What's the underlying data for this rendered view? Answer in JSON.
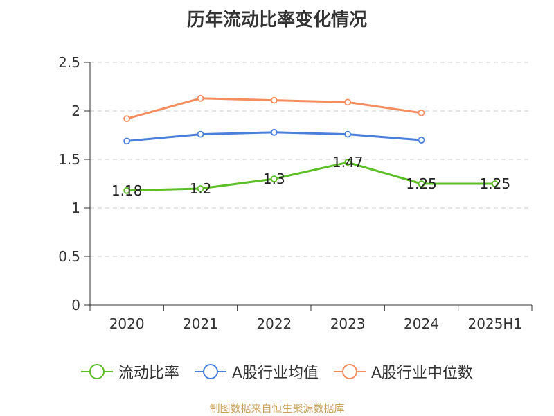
{
  "title": "历年流动比率变化情况",
  "source": "制图数据来自恒生聚源数据库",
  "colors": {
    "current_ratio": "#5cbf26",
    "industry_mean": "#4a7fdc",
    "industry_median": "#f68d5f",
    "grid": "#cccccc",
    "axis": "#333333"
  },
  "chart_data": {
    "type": "line",
    "categories": [
      "2020",
      "2021",
      "2022",
      "2023",
      "2024",
      "2025H1"
    ],
    "ylim": [
      0,
      2.5
    ],
    "yticks": [
      "0",
      "0.5",
      "1",
      "1.5",
      "2",
      "2.5"
    ],
    "grid": true,
    "legend_position": "bottom",
    "series": [
      {
        "name": "流动比率",
        "values": [
          1.18,
          1.2,
          1.3,
          1.47,
          1.25,
          1.25
        ],
        "labels": [
          "1.18",
          "1.2",
          "1.3",
          "1.47",
          "1.25",
          "1.25"
        ]
      },
      {
        "name": "A股行业均值",
        "values": [
          1.69,
          1.76,
          1.78,
          1.76,
          1.7,
          null
        ]
      },
      {
        "name": "A股行业中位数",
        "values": [
          1.92,
          2.13,
          2.11,
          2.09,
          1.98,
          null
        ]
      }
    ]
  }
}
